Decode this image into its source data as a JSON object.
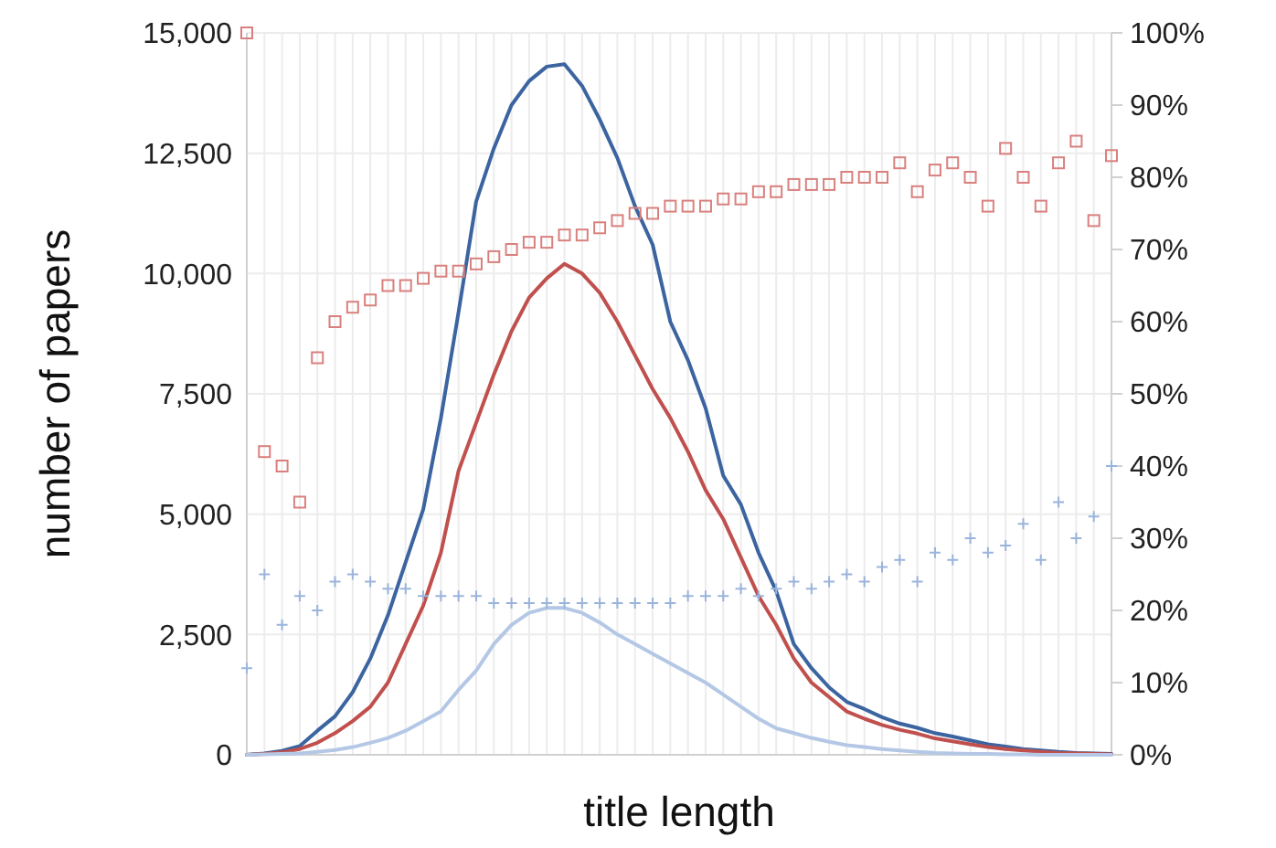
{
  "chart_data": {
    "type": "line",
    "xlabel": "title length",
    "ylabel": "number of papers",
    "categories": [
      null,
      null,
      null,
      null,
      null,
      null,
      null,
      null,
      null,
      null,
      null,
      null,
      null,
      null,
      null,
      null,
      null,
      null,
      null,
      null,
      null,
      null,
      null,
      null,
      null,
      null,
      null,
      null,
      null,
      null,
      null,
      null,
      null,
      null,
      null,
      null,
      null,
      null,
      null,
      null,
      null,
      null,
      null,
      null,
      null,
      null,
      null,
      null,
      null,
      null
    ],
    "series": [
      {
        "color": "#3b64a0",
        "values": [
          0,
          30,
          80,
          180,
          500,
          800,
          1300,
          2000,
          2900,
          4000,
          5100,
          7000,
          9200,
          11500,
          12600,
          13500,
          14000,
          14300,
          14350,
          13900,
          13200,
          12400,
          11400,
          10600,
          9000,
          8200,
          7200,
          5800,
          5200,
          4200,
          3400,
          2300,
          1800,
          1400,
          1100,
          950,
          780,
          650,
          560,
          450,
          380,
          300,
          220,
          170,
          120,
          90,
          60,
          40,
          30,
          20
        ]
      },
      {
        "color": "#c0504d",
        "values": [
          0,
          20,
          50,
          120,
          250,
          450,
          700,
          1000,
          1500,
          2300,
          3100,
          4200,
          5900,
          6900,
          7900,
          8800,
          9500,
          9900,
          10200,
          10000,
          9600,
          9000,
          8300,
          7600,
          7000,
          6300,
          5500,
          4900,
          4100,
          3300,
          2700,
          2000,
          1500,
          1200,
          900,
          750,
          620,
          520,
          440,
          340,
          280,
          220,
          160,
          120,
          90,
          60,
          40,
          30,
          20,
          10
        ]
      },
      {
        "color": "#b4c8e6",
        "values": [
          0,
          10,
          20,
          30,
          60,
          100,
          160,
          250,
          350,
          500,
          700,
          900,
          1350,
          1750,
          2300,
          2700,
          2950,
          3050,
          3050,
          2950,
          2750,
          2500,
          2300,
          2100,
          1900,
          1700,
          1500,
          1250,
          1000,
          750,
          550,
          450,
          350,
          270,
          200,
          160,
          120,
          90,
          60,
          40,
          30,
          20,
          20,
          10,
          10,
          0,
          0,
          0,
          0,
          0
        ]
      },
      {
        "type": "scatter",
        "axis": "y2",
        "marker": "square",
        "color": "#d9807e",
        "values": [
          100,
          42,
          40,
          35,
          55,
          60,
          62,
          63,
          65,
          65,
          66,
          67,
          67,
          68,
          69,
          70,
          71,
          71,
          72,
          72,
          73,
          74,
          75,
          75,
          76,
          76,
          76,
          77,
          77,
          78,
          78,
          79,
          79,
          79,
          80,
          80,
          80,
          82,
          78,
          81,
          82,
          80,
          76,
          84,
          80,
          76,
          82,
          85,
          74,
          83
        ]
      },
      {
        "type": "scatter",
        "axis": "y2",
        "marker": "cross",
        "color": "#9ab4dc",
        "values": [
          12,
          25,
          18,
          22,
          20,
          24,
          25,
          24,
          23,
          23,
          22,
          22,
          22,
          22,
          21,
          21,
          21,
          21,
          21,
          21,
          21,
          21,
          21,
          21,
          21,
          22,
          22,
          22,
          23,
          22,
          23,
          24,
          23,
          24,
          25,
          24,
          26,
          27,
          24,
          28,
          27,
          30,
          28,
          29,
          32,
          27,
          35,
          30,
          33,
          40
        ]
      }
    ],
    "ylim": [
      0,
      15000
    ],
    "yticks": [
      0,
      {
        "value": 2500,
        "label": "2,500"
      },
      {
        "value": 5000,
        "label": "5,000"
      },
      {
        "value": 7500,
        "label": "7,500"
      },
      {
        "value": 10000,
        "label": "10,000"
      },
      {
        "value": 12500,
        "label": "12,500"
      },
      {
        "value": 15000,
        "label": "15,000"
      }
    ],
    "y2lim": [
      0,
      100
    ],
    "y2ticks": [
      {
        "value": 0,
        "label": "0%"
      },
      {
        "value": 10,
        "label": "10%"
      },
      {
        "value": 20,
        "label": "20%"
      },
      {
        "value": 30,
        "label": "30%"
      },
      {
        "value": 40,
        "label": "40%"
      },
      {
        "value": 50,
        "label": "50%"
      },
      {
        "value": 60,
        "label": "60%"
      },
      {
        "value": 70,
        "label": "70%"
      },
      {
        "value": 80,
        "label": "80%"
      },
      {
        "value": 90,
        "label": "90%"
      },
      {
        "value": 100,
        "label": "100%"
      }
    ],
    "grid": true
  }
}
